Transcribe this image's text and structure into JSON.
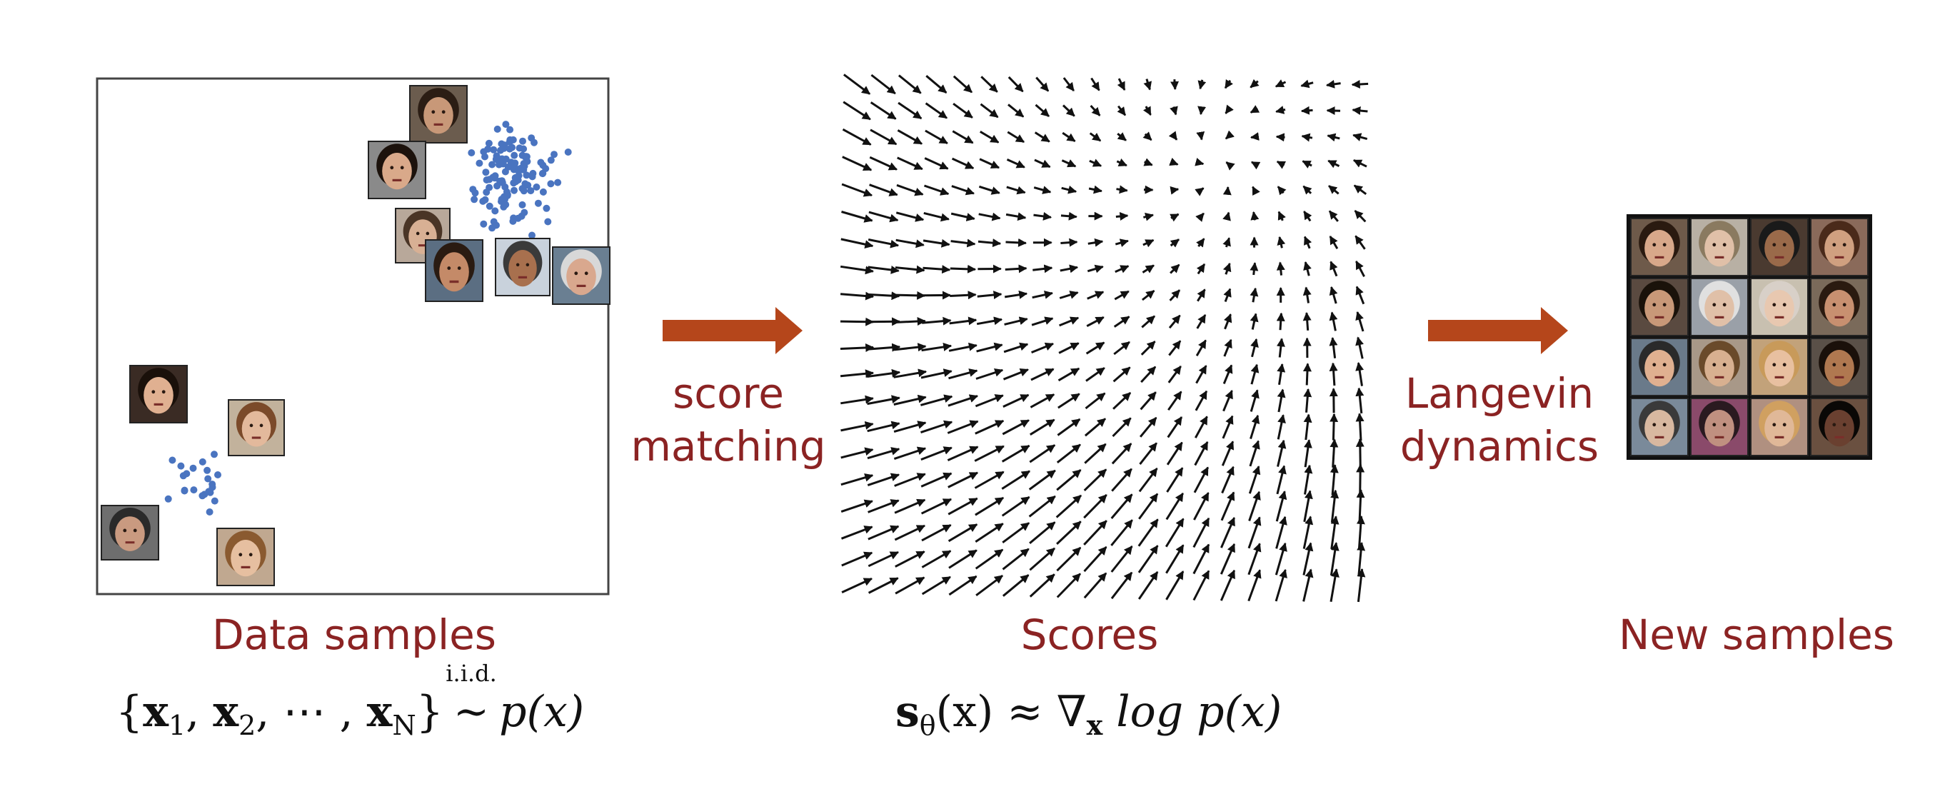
{
  "labels": {
    "data_samples": "Data samples",
    "score_matching_line1": "score",
    "score_matching_line2": "matching",
    "scores": "Scores",
    "langevin_line1": "Langevin",
    "langevin_line2": "dynamics",
    "new_samples": "New samples"
  },
  "equations": {
    "data_open": "{",
    "x1": "x",
    "x1_sub": "1",
    "comma1": ", ",
    "x2": "x",
    "x2_sub": "2",
    "dots": ", ⋯ , ",
    "xN": "x",
    "xN_sub": "N",
    "data_close": "}",
    "iid": "i.i.d.",
    "tilde": "~",
    "p_of_x": "p(x)",
    "score_s": "s",
    "score_theta": "θ",
    "score_arg": "(x)",
    "approx": " ≈ ",
    "nabla": "∇",
    "nabla_sub": "x",
    "log_p": " log p(x)"
  },
  "colors": {
    "label_red": "#8b2323",
    "arrow_orange": "#b5461b",
    "dot_blue": "#4a74c0",
    "quiver_black": "#111111"
  },
  "icons": [
    "face-photo-icon",
    "right-arrow-icon",
    "quiver-arrow-icon"
  ]
}
